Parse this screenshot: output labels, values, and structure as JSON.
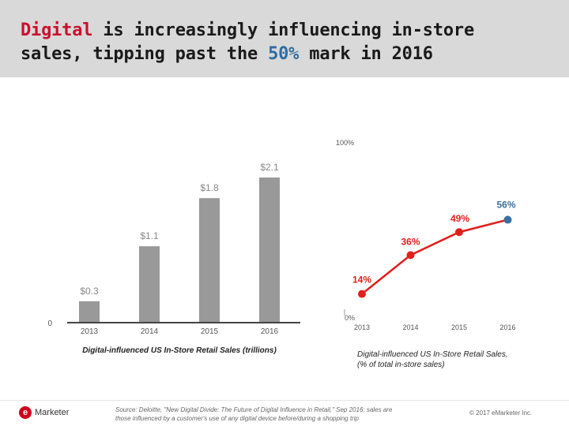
{
  "header": {
    "title_line1_red": "Digital",
    "title_line1_rest": " is increasingly influencing in-store",
    "title_line2_start": "sales, tipping past the ",
    "title_line2_blue": "50%",
    "title_line2_end": " mark in 2016"
  },
  "colors": {
    "header_bg": "#d9d9d9",
    "accent_red": "#c8102e",
    "accent_blue": "#2e6da4",
    "bar_gray": "#999999",
    "line_red": "#e0201b",
    "point_blue": "#3a6f9e"
  },
  "chart_data": [
    {
      "type": "bar",
      "categories": [
        "2013",
        "2014",
        "2015",
        "2016"
      ],
      "values": [
        0.3,
        1.1,
        1.8,
        2.1
      ],
      "data_labels": [
        "$0.3",
        "$1.1",
        "$1.8",
        "$2.1"
      ],
      "ylim": [
        0,
        2.1
      ],
      "y_tick_labels": [
        "0"
      ],
      "xlabel": "Digital-influenced US In-Store Retail Sales (trillions)",
      "ylabel": ""
    },
    {
      "type": "line",
      "categories": [
        "2013",
        "2014",
        "2015",
        "2016"
      ],
      "values": [
        14,
        36,
        49,
        56
      ],
      "data_labels": [
        "14%",
        "36%",
        "49%",
        "56%"
      ],
      "ylim": [
        0,
        100
      ],
      "y_tick_labels": [
        "0%",
        "100%"
      ],
      "xlabel_line1": "Digital-influenced US In-Store Retail Sales,",
      "xlabel_line2": "(% of total in-store sales)",
      "ylabel": ""
    }
  ],
  "footer": {
    "logo_mark": "e",
    "logo_text": "Marketer",
    "source_line1": "Source: Deloitte, \"New Digital Divide: The Future of Digital Influence in Retail,\" Sep 2016; sales are",
    "source_line2": "those influenced by a customer's use of any digital device before/during a shopping trip",
    "copyright": "© 2017 eMarketer Inc."
  }
}
